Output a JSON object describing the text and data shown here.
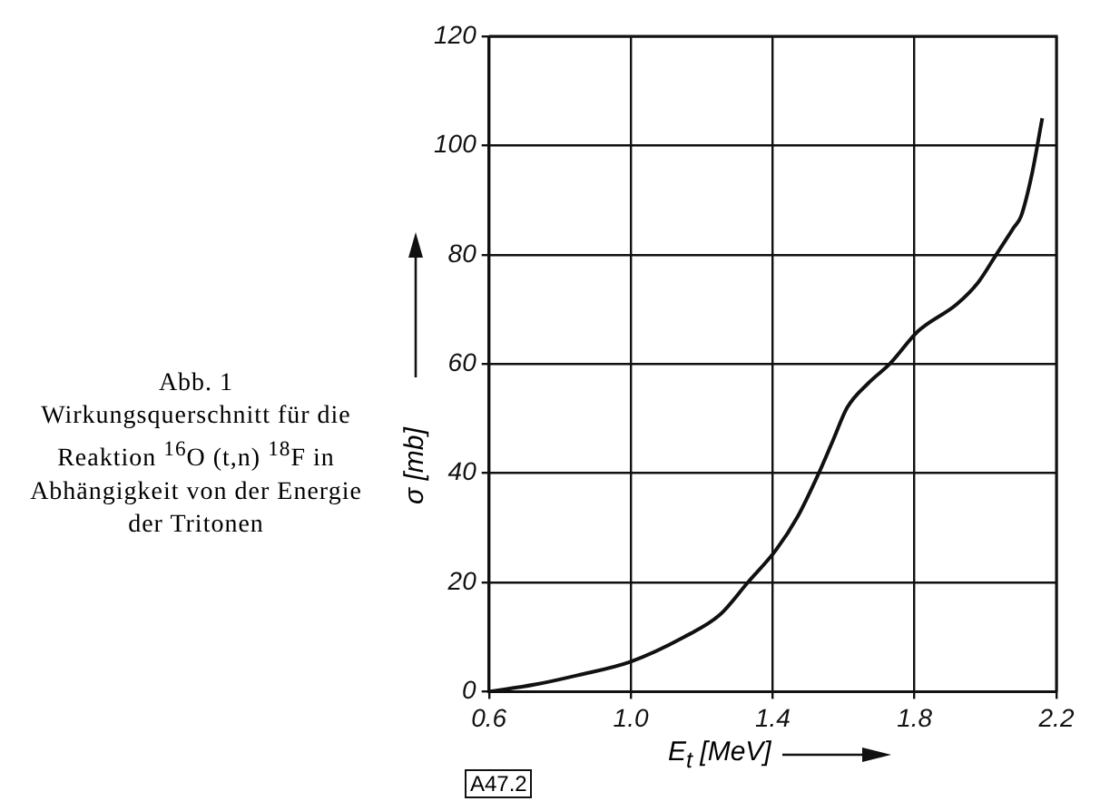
{
  "chart_data": {
    "type": "line",
    "title": "Abb. 1",
    "subtitle": "Wirkungsquerschnitt für die Reaktion $^{16}$O (t,n) $^{18}$F in Abhängigkeit von der Energie der Tritonen",
    "xlabel": "E$_{t}$ [MeV]",
    "ylabel": "σ [mb]",
    "annotations": [
      "A47.2"
    ],
    "series": [
      {
        "color": "#111111",
        "x": [
          0.6,
          0.73,
          0.85,
          1.0,
          1.15,
          1.25,
          1.33,
          1.41,
          1.47,
          1.53,
          1.57,
          1.61,
          1.67,
          1.73,
          1.81,
          1.92,
          1.98,
          2.03,
          2.08,
          2.1,
          2.13,
          2.16
        ],
        "values": [
          0,
          1.3,
          3,
          5.5,
          10,
          14,
          20,
          26,
          32,
          40,
          46,
          52,
          56.5,
          60,
          66,
          71,
          75,
          80,
          85,
          87,
          94.5,
          105
        ]
      }
    ],
    "xlim": [
      0.6,
      2.2
    ],
    "xticks": [
      {
        "value": 0.6,
        "label": "0.6"
      },
      {
        "value": 1.0,
        "label": "1.0"
      },
      {
        "value": 1.4,
        "label": "1.4"
      },
      {
        "value": 1.8,
        "label": "1.8"
      },
      {
        "value": 2.2,
        "label": "2.2"
      }
    ],
    "ylim": [
      0,
      120
    ],
    "yticks": [
      0,
      20,
      40,
      60,
      80,
      100,
      120
    ],
    "grid": true,
    "legend": false,
    "marker": "none",
    "line_style": "solid"
  }
}
